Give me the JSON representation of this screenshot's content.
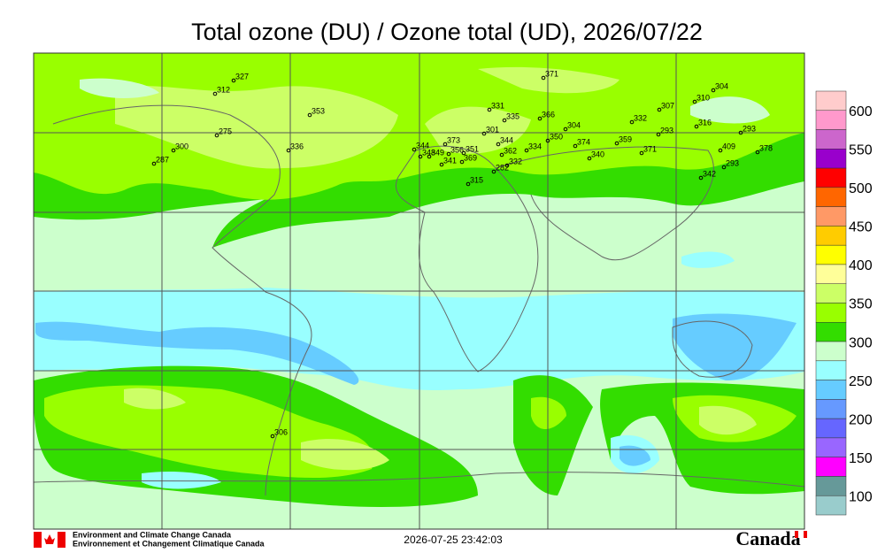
{
  "title": "Total ozone (DU) / Ozone total (UD), 2026/07/22",
  "colorbar": {
    "colors": [
      "#ffcccc",
      "#ff99cc",
      "#cc66cc",
      "#9900cc",
      "#ff0000",
      "#ff6600",
      "#ff9966",
      "#ffcc00",
      "#ffff00",
      "#ffff99",
      "#ccff66",
      "#99ff00",
      "#33dd00",
      "#ccffcc",
      "#99ffff",
      "#66ccff",
      "#6699ff",
      "#6666ff",
      "#9966ff",
      "#ff00ff",
      "#669999",
      "#99cccc"
    ],
    "labels": [
      600,
      550,
      500,
      450,
      400,
      350,
      300,
      250,
      200,
      150,
      100
    ]
  },
  "stations": [
    327,
    312,
    353,
    275,
    300,
    287,
    336,
    371,
    331,
    335,
    366,
    332,
    307,
    310,
    304,
    316,
    293,
    293,
    301,
    304,
    350,
    344,
    373,
    344,
    348,
    349,
    356,
    351,
    369,
    341,
    362,
    334,
    374,
    359,
    371,
    340,
    409,
    378,
    293,
    342,
    332,
    282,
    315,
    306
  ],
  "footer": {
    "agency_en": "Environment and Climate Change Canada",
    "agency_fr": "Environnement et Changement Climatique Canada",
    "timestamp": "2026-07-25 23:42:03",
    "wordmark": "Canada"
  }
}
